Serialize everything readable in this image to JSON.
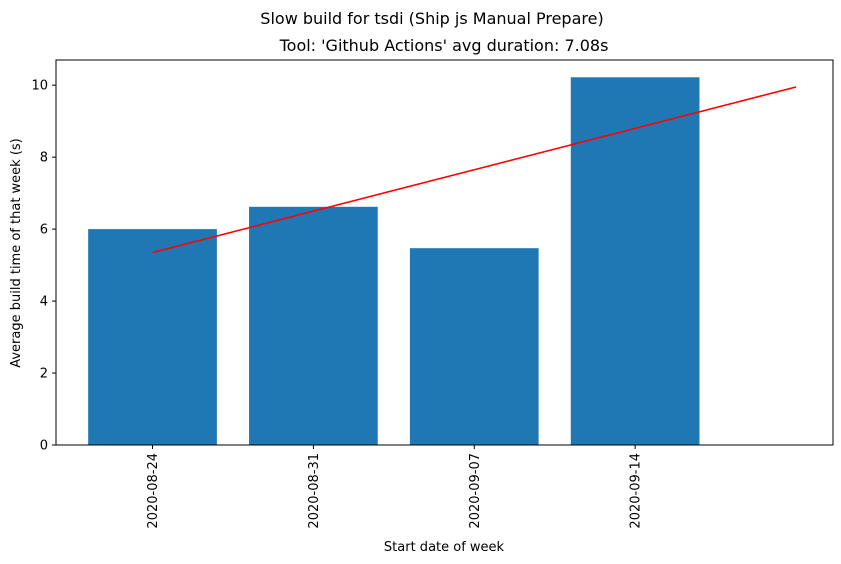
{
  "chart_data": {
    "type": "bar",
    "suptitle": "Slow build for tsdi (Ship js Manual Prepare)",
    "title": "Tool: 'Github Actions' avg duration: 7.08s",
    "xlabel": "Start date of week",
    "ylabel": "Average build time of that week (s)",
    "categories": [
      "2020-08-24",
      "2020-08-31",
      "2020-09-07",
      "2020-09-14"
    ],
    "series": [
      {
        "values": [
          6.0,
          6.62,
          5.47,
          10.22
        ],
        "color": "#1f77b4"
      }
    ],
    "trendline": {
      "x": [
        0,
        4
      ],
      "y": [
        5.35,
        9.95
      ],
      "color": "#ff0000"
    },
    "xlim": [
      -0.6,
      4.23
    ],
    "ylim": [
      0,
      10.7
    ],
    "yticks": [
      0,
      2,
      4,
      6,
      8,
      10
    ],
    "grid": false,
    "legend": "none"
  }
}
